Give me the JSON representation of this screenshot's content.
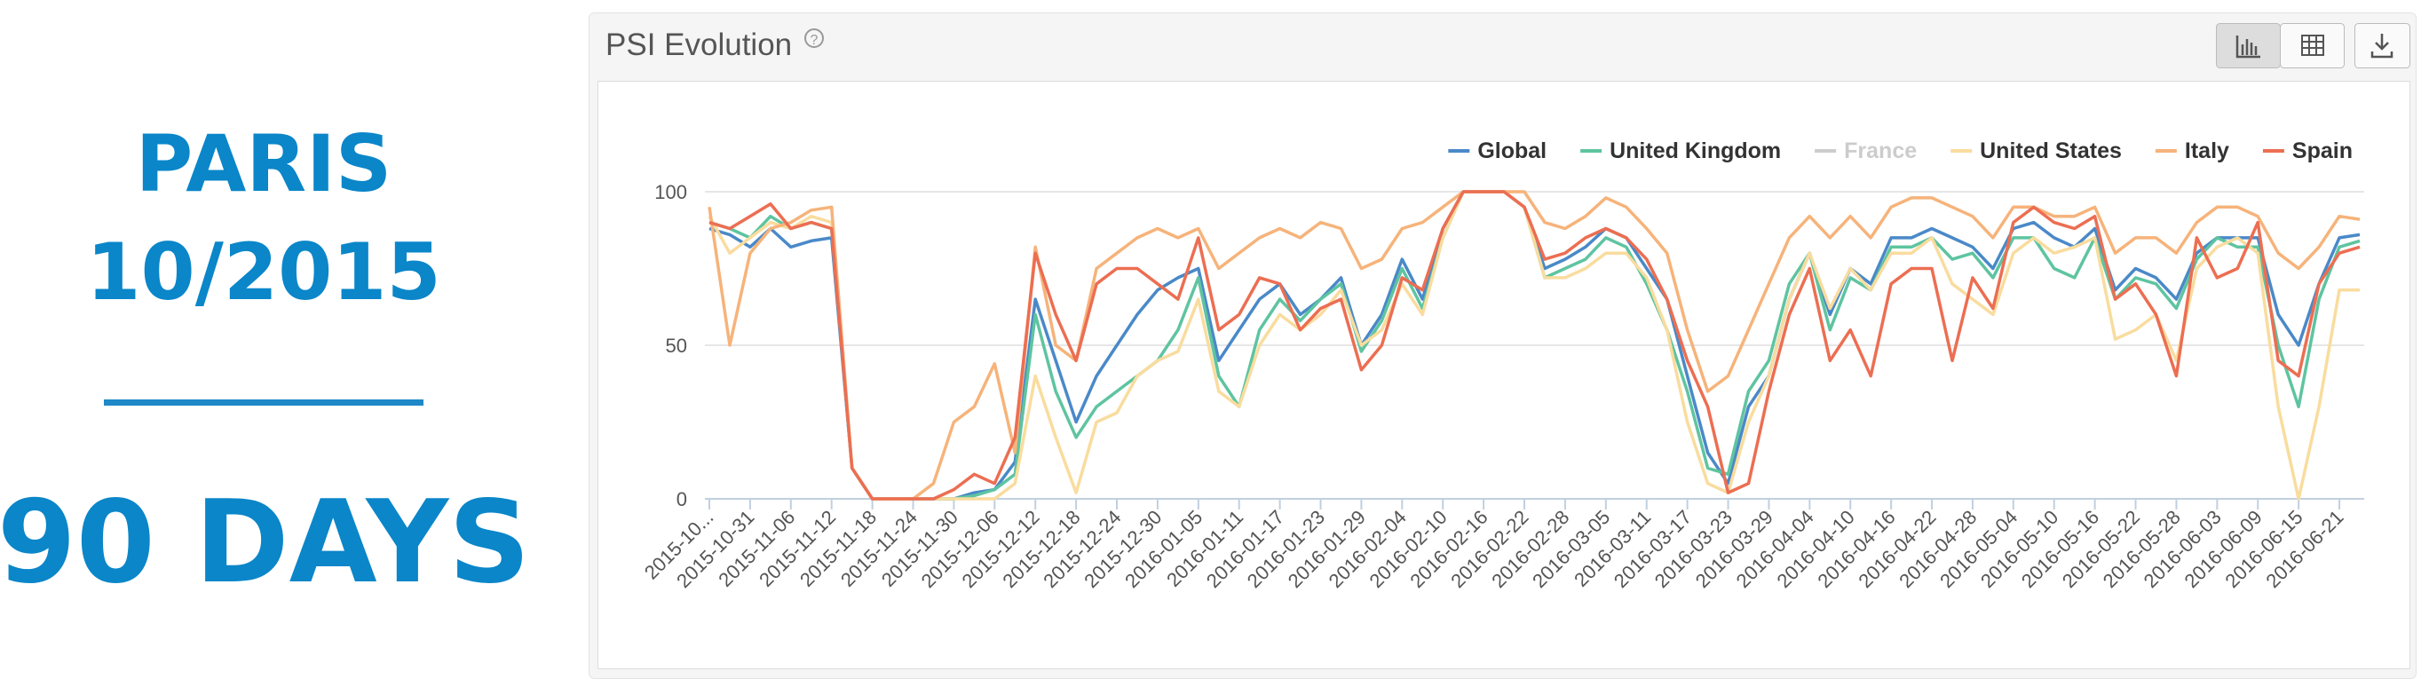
{
  "left_panel": {
    "city": "PARIS",
    "date": "10/2015",
    "duration": "90 DAYS"
  },
  "chart_data": {
    "type": "line",
    "title": "PSI Evolution",
    "help_icon": "?",
    "categories": [
      "2015-10...",
      null,
      "2015-10-31",
      null,
      "2015-11-06",
      null,
      "2015-11-12",
      null,
      "2015-11-18",
      null,
      "2015-11-24",
      null,
      "2015-11-30",
      null,
      "2015-12-06",
      null,
      "2015-12-12",
      null,
      "2015-12-18",
      null,
      "2015-12-24",
      null,
      "2015-12-30",
      null,
      "2016-01-05",
      null,
      "2016-01-11",
      null,
      "2016-01-17",
      null,
      "2016-01-23",
      null,
      "2016-01-29",
      null,
      "2016-02-04",
      null,
      "2016-02-10",
      null,
      "2016-02-16",
      null,
      "2016-02-22",
      null,
      "2016-02-28",
      null,
      "2016-03-05",
      null,
      "2016-03-11",
      null,
      "2016-03-17",
      null,
      "2016-03-23",
      null,
      "2016-03-29",
      null,
      "2016-04-04",
      null,
      "2016-04-10",
      null,
      "2016-04-16",
      null,
      "2016-04-22",
      null,
      "2016-04-28",
      null,
      "2016-05-04",
      null,
      "2016-05-10",
      null,
      "2016-05-16",
      null,
      "2016-05-22",
      null,
      "2016-05-28",
      null,
      "2016-06-03",
      null,
      "2016-06-09",
      null,
      "2016-06-15",
      null,
      "2016-06-21",
      null
    ],
    "series": [
      {
        "name": "Global",
        "color": "#4a89c8",
        "visible": true,
        "values": [
          88,
          86,
          82,
          88,
          82,
          84,
          85,
          10,
          0,
          0,
          0,
          0,
          0,
          2,
          3,
          12,
          65,
          45,
          25,
          40,
          50,
          60,
          68,
          72,
          75,
          45,
          55,
          65,
          70,
          60,
          65,
          72,
          50,
          60,
          78,
          65,
          88,
          100,
          100,
          100,
          95,
          75,
          78,
          82,
          88,
          85,
          75,
          65,
          40,
          15,
          5,
          30,
          40,
          65,
          80,
          60,
          75,
          70,
          85,
          85,
          88,
          85,
          82,
          75,
          88,
          90,
          85,
          82,
          88,
          68,
          75,
          72,
          65,
          80,
          85,
          85,
          85,
          60,
          50,
          70,
          85,
          86
        ]
      },
      {
        "name": "United Kingdom",
        "color": "#5ec4a0",
        "visible": true,
        "values": [
          90,
          88,
          85,
          92,
          88,
          90,
          88,
          10,
          0,
          0,
          0,
          0,
          0,
          1,
          3,
          8,
          60,
          35,
          20,
          30,
          35,
          40,
          45,
          55,
          72,
          40,
          30,
          55,
          65,
          58,
          65,
          70,
          48,
          58,
          75,
          62,
          85,
          100,
          100,
          100,
          95,
          72,
          75,
          78,
          85,
          82,
          70,
          55,
          35,
          10,
          8,
          35,
          45,
          70,
          80,
          55,
          72,
          68,
          82,
          82,
          85,
          78,
          80,
          72,
          85,
          85,
          75,
          72,
          85,
          65,
          72,
          70,
          62,
          78,
          85,
          82,
          82,
          50,
          30,
          65,
          82,
          84
        ]
      },
      {
        "name": "France",
        "color": "#cccccc",
        "visible": false,
        "values": [
          null,
          null,
          null,
          null,
          null,
          null,
          null,
          null,
          null,
          null,
          null,
          null,
          null,
          null,
          null,
          null,
          null,
          null,
          null,
          null,
          null,
          null,
          null,
          null,
          null,
          null,
          null,
          null,
          null,
          null,
          null,
          null,
          null,
          null,
          null,
          null,
          null,
          null,
          null,
          null,
          null,
          null,
          null,
          null,
          null,
          null,
          null,
          null,
          null,
          null,
          null,
          null,
          null,
          null,
          null,
          null,
          null,
          null,
          null,
          null,
          null,
          null,
          null,
          null,
          null,
          null,
          null,
          null,
          null,
          null,
          null,
          null,
          null,
          null,
          null,
          null,
          null,
          null,
          null,
          null,
          null,
          null
        ]
      },
      {
        "name": "United States",
        "color": "#f9dc9e",
        "visible": true,
        "values": [
          92,
          80,
          85,
          90,
          88,
          92,
          90,
          10,
          0,
          0,
          0,
          0,
          0,
          0,
          0,
          5,
          40,
          20,
          2,
          25,
          28,
          40,
          45,
          48,
          65,
          35,
          30,
          50,
          60,
          55,
          60,
          68,
          50,
          55,
          70,
          60,
          85,
          100,
          100,
          100,
          95,
          72,
          72,
          75,
          80,
          80,
          72,
          55,
          25,
          5,
          2,
          25,
          40,
          65,
          80,
          62,
          75,
          68,
          80,
          80,
          85,
          70,
          65,
          60,
          80,
          85,
          80,
          82,
          85,
          52,
          55,
          60,
          45,
          75,
          82,
          85,
          80,
          30,
          0,
          30,
          68,
          68
        ]
      },
      {
        "name": "Italy",
        "color": "#f6b37a",
        "visible": true,
        "values": [
          95,
          50,
          80,
          88,
          90,
          94,
          95,
          10,
          0,
          0,
          0,
          5,
          25,
          30,
          44,
          15,
          82,
          50,
          45,
          75,
          80,
          85,
          88,
          85,
          88,
          75,
          80,
          85,
          88,
          85,
          90,
          88,
          75,
          78,
          88,
          90,
          95,
          100,
          100,
          100,
          100,
          90,
          88,
          92,
          98,
          95,
          88,
          80,
          55,
          35,
          40,
          55,
          70,
          85,
          92,
          85,
          92,
          85,
          95,
          98,
          98,
          95,
          92,
          85,
          95,
          95,
          92,
          92,
          95,
          80,
          85,
          85,
          80,
          90,
          95,
          95,
          92,
          80,
          75,
          82,
          92,
          91
        ]
      },
      {
        "name": "Spain",
        "color": "#ec6e52",
        "visible": true,
        "values": [
          90,
          88,
          92,
          96,
          88,
          90,
          88,
          10,
          0,
          0,
          0,
          0,
          3,
          8,
          5,
          20,
          80,
          60,
          45,
          70,
          75,
          75,
          70,
          65,
          85,
          55,
          60,
          72,
          70,
          55,
          62,
          65,
          42,
          50,
          72,
          68,
          88,
          100,
          100,
          100,
          95,
          78,
          80,
          85,
          88,
          85,
          78,
          65,
          45,
          30,
          2,
          5,
          35,
          60,
          75,
          45,
          55,
          40,
          70,
          75,
          75,
          45,
          72,
          62,
          90,
          95,
          90,
          88,
          92,
          65,
          70,
          60,
          40,
          85,
          72,
          75,
          90,
          45,
          40,
          70,
          80,
          82
        ]
      }
    ],
    "ylim": [
      0,
      100
    ],
    "yticks": [
      0,
      50,
      100
    ],
    "grid": true,
    "legend": "top-right"
  }
}
